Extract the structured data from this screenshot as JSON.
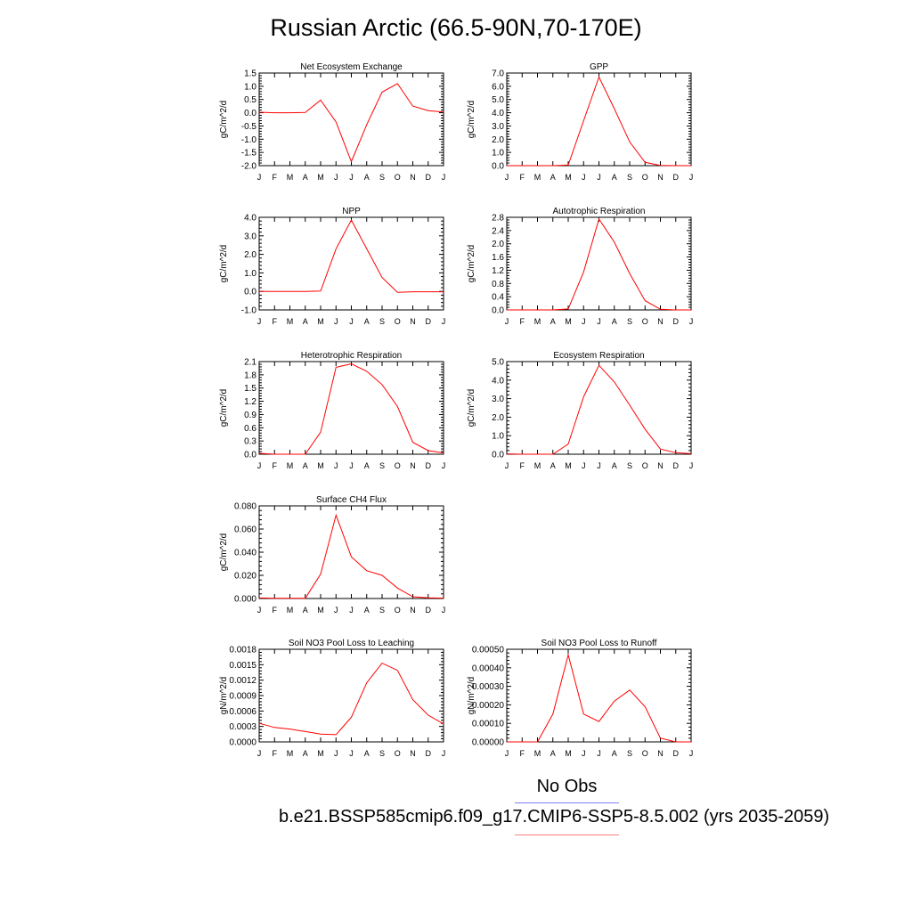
{
  "title": "Russian Arctic (66.5-90N,70-170E)",
  "months": [
    "J",
    "F",
    "M",
    "A",
    "M",
    "J",
    "J",
    "A",
    "S",
    "O",
    "N",
    "D",
    "J"
  ],
  "legend": {
    "obs_label": "No Obs",
    "model_label": "b.e21.BSSP585cmip6.f09_g17.CMIP6-SSP5-8.5.002 (yrs 2035-2059)",
    "obs_color": "#7f7fff",
    "model_color": "#ff7f7f"
  },
  "line_color": "#ff0000",
  "chart_data": [
    {
      "type": "line",
      "title": "Net Ecosystem Exchange",
      "ylabel": "gC/m^2/d",
      "ylim": [
        -2.0,
        1.5
      ],
      "yticks": [
        "-2.0",
        "-1.5",
        "-1.0",
        "-0.5",
        "0.0",
        "0.5",
        "1.0",
        "1.5"
      ],
      "values": [
        0.02,
        0.0,
        0.0,
        0.01,
        0.48,
        -0.35,
        -1.85,
        -0.45,
        0.78,
        1.1,
        0.25,
        0.08,
        0.03
      ]
    },
    {
      "type": "line",
      "title": "GPP",
      "ylabel": "gC/m^2/d",
      "ylim": [
        0.0,
        7.0
      ],
      "yticks": [
        "0.0",
        "1.0",
        "2.0",
        "3.0",
        "4.0",
        "5.0",
        "6.0",
        "7.0"
      ],
      "values": [
        0.0,
        0.0,
        0.0,
        0.0,
        0.05,
        3.4,
        6.7,
        4.3,
        1.8,
        0.25,
        0.02,
        0.0,
        0.0
      ]
    },
    {
      "type": "line",
      "title": "NPP",
      "ylabel": "gC/m^2/d",
      "ylim": [
        -1.0,
        4.0
      ],
      "yticks": [
        "-1.0",
        "0.0",
        "1.0",
        "2.0",
        "3.0",
        "4.0"
      ],
      "values": [
        0.0,
        0.0,
        0.0,
        0.0,
        0.02,
        2.3,
        3.85,
        2.3,
        0.75,
        -0.05,
        -0.02,
        -0.02,
        -0.02
      ]
    },
    {
      "type": "line",
      "title": "Autotrophic Respiration",
      "ylabel": "gC/m^2/d",
      "ylim": [
        0.0,
        2.8
      ],
      "yticks": [
        "0.0",
        "0.4",
        "0.8",
        "1.2",
        "1.6",
        "2.0",
        "2.4",
        "2.8"
      ],
      "values": [
        0.0,
        0.0,
        0.0,
        0.0,
        0.03,
        1.15,
        2.75,
        2.05,
        1.1,
        0.28,
        0.02,
        0.0,
        0.0
      ]
    },
    {
      "type": "line",
      "title": "Heterotrophic Respiration",
      "ylabel": "gC/m^2/d",
      "ylim": [
        0.0,
        2.1
      ],
      "yticks": [
        "0.0",
        "0.3",
        "0.6",
        "0.9",
        "1.2",
        "1.5",
        "1.8",
        "2.1"
      ],
      "values": [
        0.02,
        0.0,
        0.0,
        0.0,
        0.5,
        1.97,
        2.05,
        1.88,
        1.58,
        1.08,
        0.27,
        0.08,
        0.03
      ]
    },
    {
      "type": "line",
      "title": "Ecosystem Respiration",
      "ylabel": "gC/m^2/d",
      "ylim": [
        0.0,
        5.0
      ],
      "yticks": [
        "0.0",
        "1.0",
        "2.0",
        "3.0",
        "4.0",
        "5.0"
      ],
      "values": [
        0.02,
        0.0,
        0.0,
        0.0,
        0.55,
        3.1,
        4.8,
        3.9,
        2.65,
        1.35,
        0.28,
        0.08,
        0.03
      ]
    },
    {
      "type": "line",
      "title": "Surface CH4 Flux",
      "ylabel": "gC/m^2/d",
      "ylim": [
        0.0,
        0.08
      ],
      "yticks": [
        "0.000",
        "0.020",
        "0.040",
        "0.060",
        "0.080"
      ],
      "values": [
        0.0005,
        0.0002,
        0.0002,
        0.0002,
        0.021,
        0.072,
        0.036,
        0.024,
        0.02,
        0.009,
        0.0015,
        0.0006,
        0.0003
      ]
    },
    {
      "type": "line",
      "title": "Soil NO3 Pool Loss to Leaching",
      "ylabel": "gN/m^2/d",
      "ylim": [
        0.0,
        0.0018
      ],
      "yticks": [
        "0.0000",
        "0.0003",
        "0.0006",
        "0.0009",
        "0.0012",
        "0.0015",
        "0.0018"
      ],
      "values": [
        0.00036,
        0.00028,
        0.00025,
        0.0002,
        0.00015,
        0.00014,
        0.00048,
        0.00115,
        0.00153,
        0.00139,
        0.00082,
        0.00052,
        0.00035
      ]
    },
    {
      "type": "line",
      "title": "Soil NO3 Pool Loss to Runoff",
      "ylabel": "gN/m^2/d",
      "ylim": [
        0.0,
        0.0005
      ],
      "yticks": [
        "0.00000",
        "0.00010",
        "0.00020",
        "0.00030",
        "0.00040",
        "0.00050"
      ],
      "values": [
        0.0,
        0.0,
        0.0,
        0.00015,
        0.00047,
        0.00015,
        0.00011,
        0.00022,
        0.00028,
        0.00019,
        2e-05,
        0.0,
        0.0
      ]
    }
  ]
}
